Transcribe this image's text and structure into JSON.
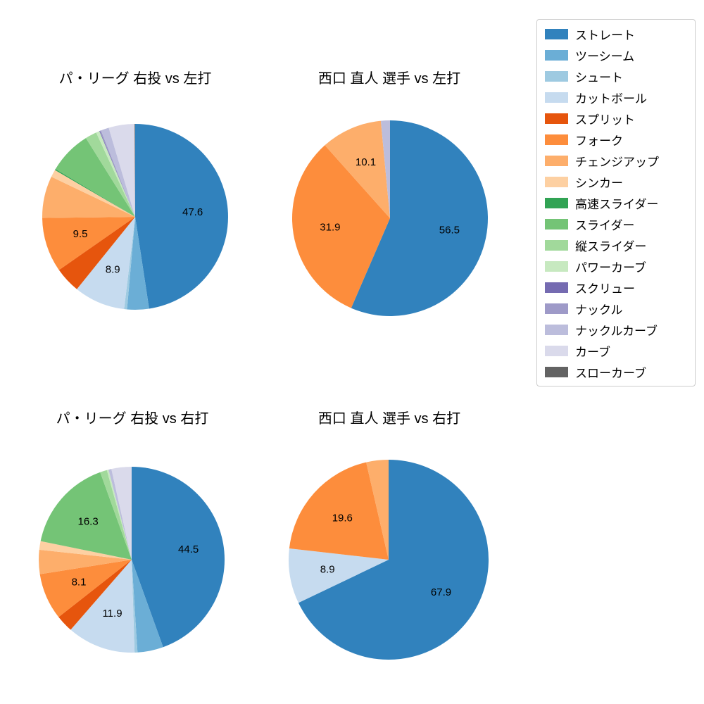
{
  "legend": {
    "items": [
      {
        "label": "ストレート",
        "color": "#3182bd"
      },
      {
        "label": "ツーシーム",
        "color": "#6baed6"
      },
      {
        "label": "シュート",
        "color": "#9ecae1"
      },
      {
        "label": "カットボール",
        "color": "#c6dbef"
      },
      {
        "label": "スプリット",
        "color": "#e6550d"
      },
      {
        "label": "フォーク",
        "color": "#fd8d3c"
      },
      {
        "label": "チェンジアップ",
        "color": "#fdae6b"
      },
      {
        "label": "シンカー",
        "color": "#fdd0a2"
      },
      {
        "label": "高速スライダー",
        "color": "#31a354"
      },
      {
        "label": "スライダー",
        "color": "#74c476"
      },
      {
        "label": "縦スライダー",
        "color": "#a1d99b"
      },
      {
        "label": "パワーカーブ",
        "color": "#c7e9c0"
      },
      {
        "label": "スクリュー",
        "color": "#756bb1"
      },
      {
        "label": "ナックル",
        "color": "#9e9ac8"
      },
      {
        "label": "ナックルカーブ",
        "color": "#bcbddc"
      },
      {
        "label": "カーブ",
        "color": "#dadaeb"
      },
      {
        "label": "スローカーブ",
        "color": "#636363"
      }
    ]
  },
  "chart_data": [
    {
      "type": "pie",
      "title": "パ・リーグ 右投 vs 左打",
      "start_angle": "top",
      "direction": "clockwise",
      "label_threshold": 8,
      "slices": [
        {
          "name": "ストレート",
          "value": 47.6
        },
        {
          "name": "ツーシーム",
          "value": 3.8
        },
        {
          "name": "シュート",
          "value": 0.5
        },
        {
          "name": "カットボール",
          "value": 8.9
        },
        {
          "name": "スプリット",
          "value": 4.5
        },
        {
          "name": "フォーク",
          "value": 9.5
        },
        {
          "name": "チェンジアップ",
          "value": 7.3
        },
        {
          "name": "シンカー",
          "value": 1.3
        },
        {
          "name": "高速スライダー",
          "value": 0.2
        },
        {
          "name": "スライダー",
          "value": 7.5
        },
        {
          "name": "縦スライダー",
          "value": 2.0
        },
        {
          "name": "パワーカーブ",
          "value": 0.6
        },
        {
          "name": "スクリュー",
          "value": 0.1
        },
        {
          "name": "ナックル",
          "value": 0.2
        },
        {
          "name": "ナックルカーブ",
          "value": 1.4
        },
        {
          "name": "カーブ",
          "value": 4.5
        },
        {
          "name": "スローカーブ",
          "value": 0.1
        }
      ]
    },
    {
      "type": "pie",
      "title": "西口 直人 選手 vs 左打",
      "start_angle": "top",
      "direction": "clockwise",
      "label_threshold": 8,
      "slices": [
        {
          "name": "ストレート",
          "value": 56.5
        },
        {
          "name": "フォーク",
          "value": 31.9
        },
        {
          "name": "チェンジアップ",
          "value": 10.1
        },
        {
          "name": "ナックルカーブ",
          "value": 1.5
        }
      ]
    },
    {
      "type": "pie",
      "title": "パ・リーグ 右投 vs 右打",
      "start_angle": "top",
      "direction": "clockwise",
      "label_threshold": 8,
      "slices": [
        {
          "name": "ストレート",
          "value": 44.5
        },
        {
          "name": "ツーシーム",
          "value": 4.5
        },
        {
          "name": "シュート",
          "value": 0.5
        },
        {
          "name": "カットボール",
          "value": 11.9
        },
        {
          "name": "スプリット",
          "value": 3.0
        },
        {
          "name": "フォーク",
          "value": 8.1
        },
        {
          "name": "チェンジアップ",
          "value": 4.2
        },
        {
          "name": "シンカー",
          "value": 1.5
        },
        {
          "name": "スライダー",
          "value": 16.3
        },
        {
          "name": "縦スライダー",
          "value": 1.2
        },
        {
          "name": "パワーカーブ",
          "value": 0.3
        },
        {
          "name": "ナックルカーブ",
          "value": 0.5
        },
        {
          "name": "カーブ",
          "value": 3.5
        }
      ]
    },
    {
      "type": "pie",
      "title": "西口 直人 選手 vs 右打",
      "start_angle": "top",
      "direction": "clockwise",
      "label_threshold": 8,
      "slices": [
        {
          "name": "ストレート",
          "value": 67.9
        },
        {
          "name": "カットボール",
          "value": 8.9
        },
        {
          "name": "フォーク",
          "value": 19.6
        },
        {
          "name": "チェンジアップ",
          "value": 3.6
        }
      ]
    }
  ]
}
